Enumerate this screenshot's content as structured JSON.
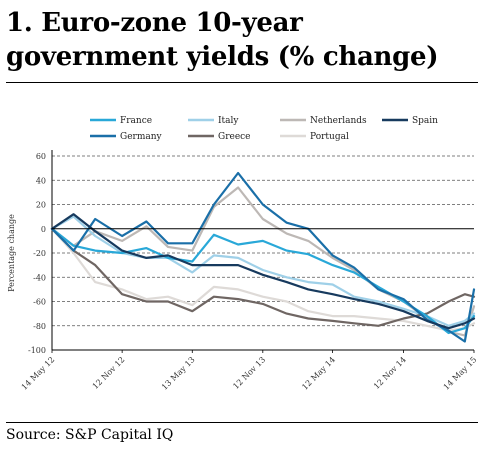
{
  "title": "1. Euro-zone 10-year government yields (% change)",
  "source": "Source: S&P Capital IQ",
  "chart_data": {
    "type": "line",
    "title": "1. Euro-zone 10-year government yields (% change)",
    "xlabel": "",
    "ylabel": "Percentage change",
    "ylim": [
      -100,
      60
    ],
    "yticks": [
      60,
      40,
      20,
      0,
      -20,
      -40,
      -60,
      -80,
      -100
    ],
    "xlim": [
      "2012-05-14",
      "2015-05-14"
    ],
    "xtick_labels": [
      "14 May 12",
      "12 Nov 12",
      "13 May 13",
      "12 Nov 13",
      "12 May 14",
      "12 Nov 14",
      "14 May 15"
    ],
    "xtick_dates": [
      "2012-05-14",
      "2012-11-12",
      "2013-05-13",
      "2013-11-12",
      "2014-05-12",
      "2014-11-12",
      "2015-05-14"
    ],
    "grid": "horizontal dashed",
    "legend_position": "top",
    "series": [
      {
        "name": "France",
        "color": "#29a8d8",
        "x": [
          "2012-05-14",
          "2012-07-09",
          "2012-09-03",
          "2012-11-12",
          "2013-01-14",
          "2013-03-11",
          "2013-05-13",
          "2013-07-08",
          "2013-09-09",
          "2013-11-12",
          "2014-01-13",
          "2014-03-10",
          "2014-05-12",
          "2014-07-07",
          "2014-09-08",
          "2014-11-12",
          "2015-01-12",
          "2015-03-09",
          "2015-04-20",
          "2015-05-14"
        ],
        "values": [
          0,
          -14,
          -18,
          -20,
          -16,
          -24,
          -27,
          -5,
          -13,
          -10,
          -18,
          -21,
          -30,
          -36,
          -48,
          -60,
          -72,
          -86,
          -82,
          -72
        ]
      },
      {
        "name": "Germany",
        "color": "#1a6fa8",
        "x": [
          "2012-05-14",
          "2012-07-09",
          "2012-09-03",
          "2012-11-12",
          "2013-01-14",
          "2013-03-11",
          "2013-05-13",
          "2013-07-08",
          "2013-09-09",
          "2013-11-12",
          "2014-01-13",
          "2014-03-10",
          "2014-05-12",
          "2014-07-07",
          "2014-09-08",
          "2014-11-12",
          "2015-01-12",
          "2015-03-09",
          "2015-04-20",
          "2015-05-14"
        ],
        "values": [
          0,
          -18,
          8,
          -6,
          6,
          -12,
          -12,
          20,
          46,
          20,
          5,
          0,
          -22,
          -32,
          -50,
          -58,
          -75,
          -84,
          -93,
          -50
        ]
      },
      {
        "name": "Italy",
        "color": "#9fd0e8",
        "x": [
          "2012-05-14",
          "2012-07-09",
          "2012-09-03",
          "2012-11-12",
          "2013-01-14",
          "2013-03-11",
          "2013-05-13",
          "2013-07-08",
          "2013-09-09",
          "2013-11-12",
          "2014-01-13",
          "2014-03-10",
          "2014-05-12",
          "2014-07-07",
          "2014-09-08",
          "2014-11-12",
          "2015-01-12",
          "2015-03-09",
          "2015-04-20",
          "2015-05-14"
        ],
        "values": [
          0,
          10,
          -6,
          -20,
          -24,
          -24,
          -36,
          -22,
          -24,
          -34,
          -40,
          -44,
          -46,
          -56,
          -60,
          -66,
          -72,
          -80,
          -76,
          -70
        ]
      },
      {
        "name": "Greece",
        "color": "#6f6663",
        "x": [
          "2012-05-14",
          "2012-07-09",
          "2012-09-03",
          "2012-11-12",
          "2013-01-14",
          "2013-03-11",
          "2013-05-13",
          "2013-07-08",
          "2013-09-09",
          "2013-11-12",
          "2014-01-13",
          "2014-03-10",
          "2014-05-12",
          "2014-07-07",
          "2014-09-08",
          "2014-11-12",
          "2015-01-12",
          "2015-03-09",
          "2015-04-20",
          "2015-05-14"
        ],
        "values": [
          0,
          -18,
          -30,
          -54,
          -60,
          -60,
          -68,
          -56,
          -58,
          -62,
          -70,
          -74,
          -76,
          -78,
          -80,
          -74,
          -70,
          -60,
          -54,
          -56
        ]
      },
      {
        "name": "Netherlands",
        "color": "#bdb8b5",
        "x": [
          "2012-05-14",
          "2012-07-09",
          "2012-09-03",
          "2012-11-12",
          "2013-01-14",
          "2013-03-11",
          "2013-05-13",
          "2013-07-08",
          "2013-09-09",
          "2013-11-12",
          "2014-01-13",
          "2014-03-10",
          "2014-05-12",
          "2014-07-07",
          "2014-09-08",
          "2014-11-12",
          "2015-01-12",
          "2015-03-09",
          "2015-04-20",
          "2015-05-14"
        ],
        "values": [
          0,
          -14,
          -2,
          -10,
          2,
          -15,
          -18,
          18,
          34,
          8,
          -4,
          -10,
          -24,
          -34,
          -50,
          -60,
          -74,
          -85,
          -88,
          -64
        ]
      },
      {
        "name": "Portugal",
        "color": "#dedad7",
        "x": [
          "2012-05-14",
          "2012-07-09",
          "2012-09-03",
          "2012-11-12",
          "2013-01-14",
          "2013-03-11",
          "2013-05-13",
          "2013-07-08",
          "2013-09-09",
          "2013-11-12",
          "2014-01-13",
          "2014-03-10",
          "2014-05-12",
          "2014-07-07",
          "2014-09-08",
          "2014-11-12",
          "2015-01-12",
          "2015-03-09",
          "2015-04-20",
          "2015-05-14"
        ],
        "values": [
          0,
          -20,
          -44,
          -50,
          -58,
          -56,
          -63,
          -48,
          -50,
          -56,
          -60,
          -68,
          -72,
          -72,
          -74,
          -76,
          -80,
          -84,
          -82,
          -78
        ]
      },
      {
        "name": "Spain",
        "color": "#173a5e",
        "x": [
          "2012-05-14",
          "2012-07-09",
          "2012-09-03",
          "2012-11-12",
          "2013-01-14",
          "2013-03-11",
          "2013-05-13",
          "2013-07-08",
          "2013-09-09",
          "2013-11-12",
          "2014-01-13",
          "2014-03-10",
          "2014-05-12",
          "2014-07-07",
          "2014-09-08",
          "2014-11-12",
          "2015-01-12",
          "2015-03-09",
          "2015-04-20",
          "2015-05-14"
        ],
        "values": [
          0,
          12,
          -2,
          -18,
          -24,
          -22,
          -30,
          -30,
          -30,
          -38,
          -44,
          -50,
          -54,
          -58,
          -62,
          -68,
          -76,
          -82,
          -78,
          -74
        ]
      }
    ]
  }
}
